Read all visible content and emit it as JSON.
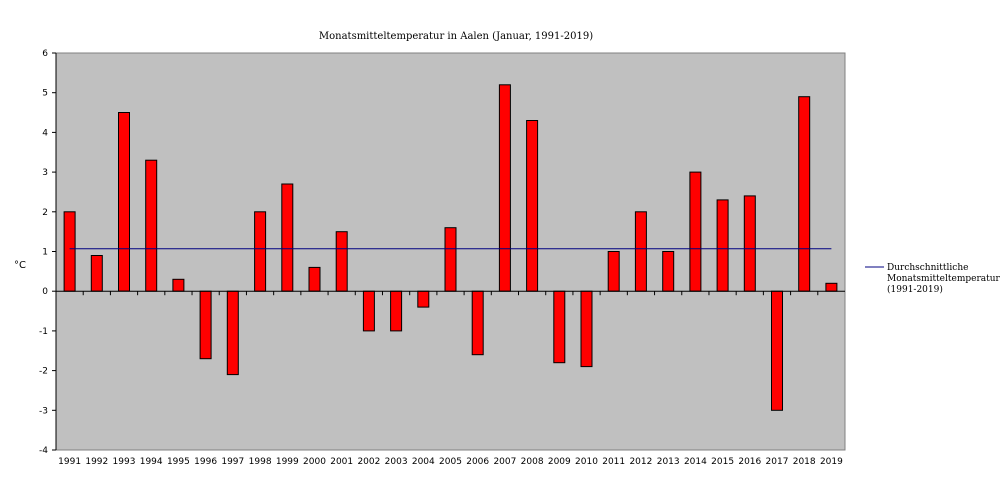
{
  "chart_data": {
    "type": "bar",
    "title": "Monatsmitteltemperatur in Aalen (Januar, 1991-2019)",
    "xlabel": "",
    "ylabel": "°C",
    "ylim": [
      -4,
      6
    ],
    "yticks": [
      -4,
      -3,
      -2,
      -1,
      0,
      1,
      2,
      3,
      4,
      5,
      6
    ],
    "grid": false,
    "categories": [
      "1991",
      "1992",
      "1993",
      "1994",
      "1995",
      "1996",
      "1997",
      "1998",
      "1999",
      "2000",
      "2001",
      "2002",
      "2003",
      "2004",
      "2005",
      "2006",
      "2007",
      "2008",
      "2009",
      "2010",
      "2011",
      "2012",
      "2013",
      "2014",
      "2015",
      "2016",
      "2017",
      "2018",
      "2019"
    ],
    "series": [
      {
        "values": [
          2.0,
          0.9,
          4.5,
          3.3,
          0.3,
          -1.7,
          -2.1,
          2.0,
          2.7,
          0.6,
          1.5,
          -1.0,
          -1.0,
          -0.4,
          1.6,
          -1.6,
          5.2,
          4.3,
          -1.8,
          -1.9,
          1.0,
          2.0,
          1.0,
          3.0,
          2.3,
          2.4,
          -3.0,
          4.9,
          0.2
        ],
        "color": "#ff0000"
      }
    ],
    "reference_line": {
      "value": 1.07,
      "color": "#000080",
      "legend_lines": [
        "Durchschnittliche",
        "Monatsmitteltemperatur",
        "(1991-2019)"
      ]
    },
    "plot_background": "#c0c0c0",
    "legend_position": "right"
  }
}
